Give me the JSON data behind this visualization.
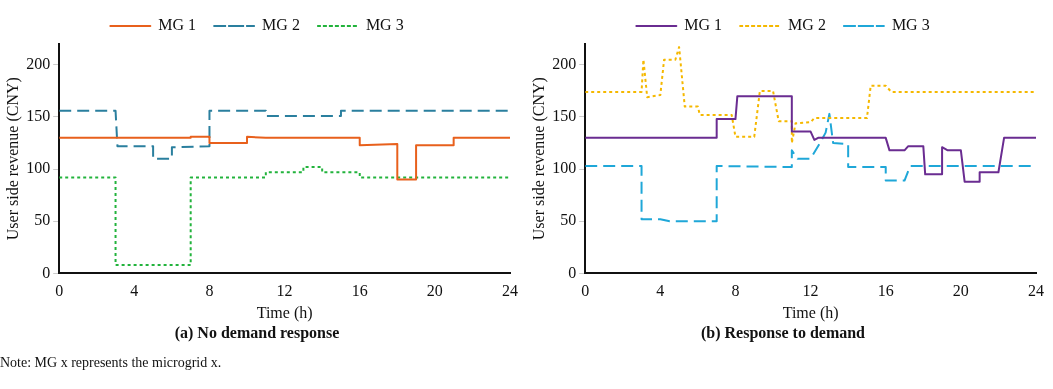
{
  "chart_data": [
    {
      "type": "line",
      "title": "(a) No demand response",
      "xlabel": "Time (h)",
      "ylabel": "User side revenue (CNY)",
      "xlim": [
        0,
        24
      ],
      "xticks": [
        0,
        4,
        8,
        12,
        16,
        20,
        24
      ],
      "ylim": [
        0,
        220
      ],
      "yticks": [
        0,
        50,
        100,
        150,
        200
      ],
      "grid": false,
      "legend": "top",
      "marker": "none",
      "annotations": [
        "Note: MG x represents the microgrid x."
      ],
      "series": [
        {
          "name": "MG 1",
          "color": "#e8601c",
          "line_style": "solid",
          "x": [
            0,
            7,
            7,
            8,
            8,
            10,
            10,
            11,
            16,
            16,
            18,
            18,
            19,
            19,
            21,
            21,
            24
          ],
          "values": [
            130,
            130,
            131,
            131,
            125,
            125,
            131,
            130,
            130,
            123,
            124,
            90,
            90,
            123,
            123,
            130,
            130
          ]
        },
        {
          "name": "MG 2",
          "color": "#2a7f9e",
          "line_style": "dashed",
          "x": [
            0,
            3,
            3.1,
            5,
            5,
            6,
            6,
            8,
            8,
            11,
            11,
            15,
            15,
            24
          ],
          "values": [
            156,
            156,
            122,
            122,
            110,
            110,
            121,
            122,
            156,
            156,
            151,
            151,
            156,
            156
          ]
        },
        {
          "name": "MG 3",
          "color": "#22b33c",
          "line_style": "dotted",
          "x": [
            0,
            3,
            3,
            7,
            7,
            11,
            11,
            13,
            13,
            14,
            14,
            16,
            16,
            24
          ],
          "values": [
            92,
            92,
            8,
            8,
            92,
            92,
            97,
            97,
            102,
            102,
            97,
            97,
            92,
            92
          ]
        }
      ]
    },
    {
      "type": "line",
      "title": "(b) Response to demand",
      "xlabel": "Time (h)",
      "ylabel": "User side revenue (CNY)",
      "xlim": [
        0,
        24
      ],
      "xticks": [
        0,
        4,
        8,
        12,
        16,
        20,
        24
      ],
      "ylim": [
        0,
        220
      ],
      "yticks": [
        0,
        50,
        100,
        150,
        200
      ],
      "grid": false,
      "legend": "top",
      "marker": "none",
      "series": [
        {
          "name": "MG 1",
          "color": "#6a2c91",
          "line_style": "solid",
          "x": [
            0,
            7,
            7,
            8,
            8.1,
            11,
            11,
            12,
            12.2,
            12.4,
            16,
            16.2,
            17,
            17.2,
            18,
            18.1,
            19,
            19,
            19.3,
            20,
            20.2,
            21,
            21,
            22,
            22.3,
            24
          ],
          "values": [
            130,
            130,
            148,
            148,
            170,
            170,
            136,
            136,
            128,
            130,
            130,
            118,
            118,
            122,
            122,
            95,
            95,
            121,
            118,
            118,
            88,
            88,
            97,
            97,
            130,
            130
          ]
        },
        {
          "name": "MG 2",
          "color": "#f5b800",
          "line_style": "dotted",
          "x": [
            0,
            3,
            3.1,
            3.3,
            4,
            4.2,
            4.8,
            5,
            5.3,
            6,
            6.1,
            7.8,
            8,
            9,
            9.3,
            10,
            10.3,
            11,
            11,
            11.2,
            12,
            12.2,
            15,
            15.2,
            16,
            16.3,
            24
          ],
          "values": [
            174,
            174,
            205,
            169,
            171,
            205,
            205,
            217,
            160,
            160,
            152,
            152,
            131,
            131,
            175,
            175,
            146,
            146,
            125,
            144,
            145,
            149,
            149,
            180,
            180,
            174,
            174
          ]
        },
        {
          "name": "MG 3",
          "color": "#1fa7d8",
          "line_style": "dashed",
          "x": [
            0,
            3,
            3,
            4,
            4.5,
            7,
            7,
            11,
            11,
            11.3,
            12,
            12.5,
            12.8,
            13,
            13.2,
            14,
            14,
            16,
            16,
            17,
            17.3,
            24
          ],
          "values": [
            103,
            103,
            52,
            52,
            50,
            50,
            103,
            102,
            118,
            110,
            110,
            125,
            135,
            153,
            125,
            124,
            102,
            102,
            89,
            89,
            103,
            103
          ]
        }
      ]
    }
  ]
}
